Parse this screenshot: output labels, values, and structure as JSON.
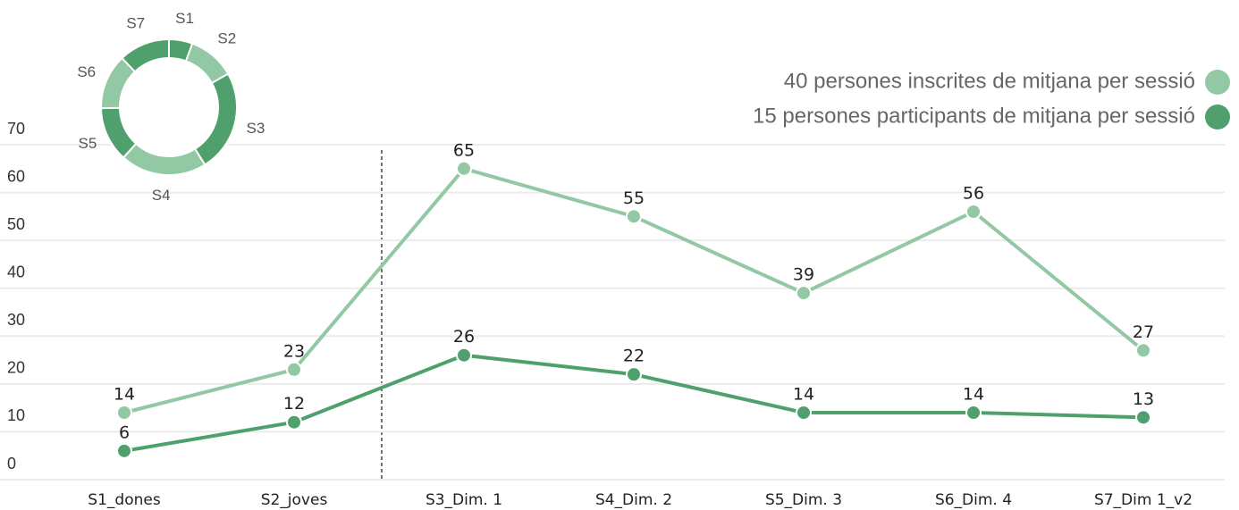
{
  "chart_data": [
    {
      "type": "line",
      "categories": [
        "S1_dones",
        "S2_joves",
        "S3_Dim. 1",
        "S4_Dim. 2",
        "S5_Dim. 3",
        "S6_Dim. 4",
        "S7_Dim 1_v2"
      ],
      "series": [
        {
          "name": "40 persones inscrites de mitjana per sessió",
          "color": "#93c8a4",
          "values": [
            14,
            23,
            65,
            55,
            39,
            56,
            27
          ]
        },
        {
          "name": "15 persones participants de mitjana per sessió",
          "color": "#4fa06c",
          "values": [
            6,
            12,
            26,
            22,
            14,
            14,
            13
          ]
        }
      ],
      "ylim": [
        0,
        70
      ],
      "yticks": [
        0,
        10,
        20,
        30,
        40,
        50,
        60,
        70
      ],
      "grid": true,
      "legend": "top-right"
    },
    {
      "type": "pie",
      "categories": [
        "S1",
        "S2",
        "S3",
        "S4",
        "S5",
        "S6",
        "S7"
      ],
      "values": [
        6,
        12,
        26,
        22,
        14,
        14,
        13
      ],
      "colors": [
        "#4fa06c",
        "#93c8a4",
        "#4fa06c",
        "#93c8a4",
        "#4fa06c",
        "#93c8a4",
        "#4fa06c"
      ],
      "donut": true
    }
  ]
}
